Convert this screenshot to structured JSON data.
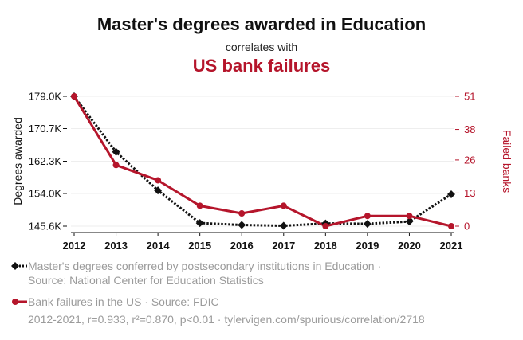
{
  "header": {
    "title": "Master's degrees awarded in Education",
    "subtitle": "correlates with",
    "title2": "US bank failures"
  },
  "colors": {
    "series1": "#111111",
    "series2": "#b5152b",
    "axis_left": "#111111",
    "axis_right": "#b5152b",
    "grid": "#eeeeee",
    "muted_text": "#9b9b9b"
  },
  "chart_data": {
    "type": "line",
    "x": [
      2012,
      2013,
      2014,
      2015,
      2016,
      2017,
      2018,
      2019,
      2020,
      2021
    ],
    "x_tick_labels": [
      "2012",
      "2013",
      "2014",
      "2015",
      "2016",
      "2017",
      "2018",
      "2019",
      "2020",
      "2021"
    ],
    "y_left": {
      "label": "Degrees awarded",
      "range": [
        145600,
        179000
      ],
      "ticks": [
        145600,
        154000,
        162300,
        170700,
        179000
      ],
      "tick_labels": [
        "145.6K",
        "154.0K",
        "162.3K",
        "170.7K",
        "179.0K"
      ]
    },
    "y_right": {
      "label": "Failed banks",
      "range": [
        0,
        51
      ],
      "ticks": [
        0,
        13,
        26,
        38,
        51
      ],
      "tick_labels": [
        "0",
        "13",
        "26",
        "38",
        "51"
      ]
    },
    "grid": true,
    "series": [
      {
        "axis": "left",
        "style": "dotted",
        "marker": "diamond",
        "values": [
          179000,
          164700,
          154800,
          146400,
          145900,
          145700,
          146300,
          146200,
          146800,
          153800
        ]
      },
      {
        "axis": "right",
        "style": "solid",
        "marker": "circle",
        "values": [
          51,
          24,
          18,
          8,
          5,
          8,
          0,
          4,
          4,
          0
        ]
      }
    ]
  },
  "legend": {
    "series1_text": "Master's degrees conferred by postsecondary institutions in Education · Source: National Center for Education Statistics",
    "series2_text": "Bank failures in the US · Source: FDIC"
  },
  "footer": {
    "text": "2012-2021, r=0.933, r²=0.870, p<0.01 · tylervigen.com/spurious/correlation/2718"
  }
}
